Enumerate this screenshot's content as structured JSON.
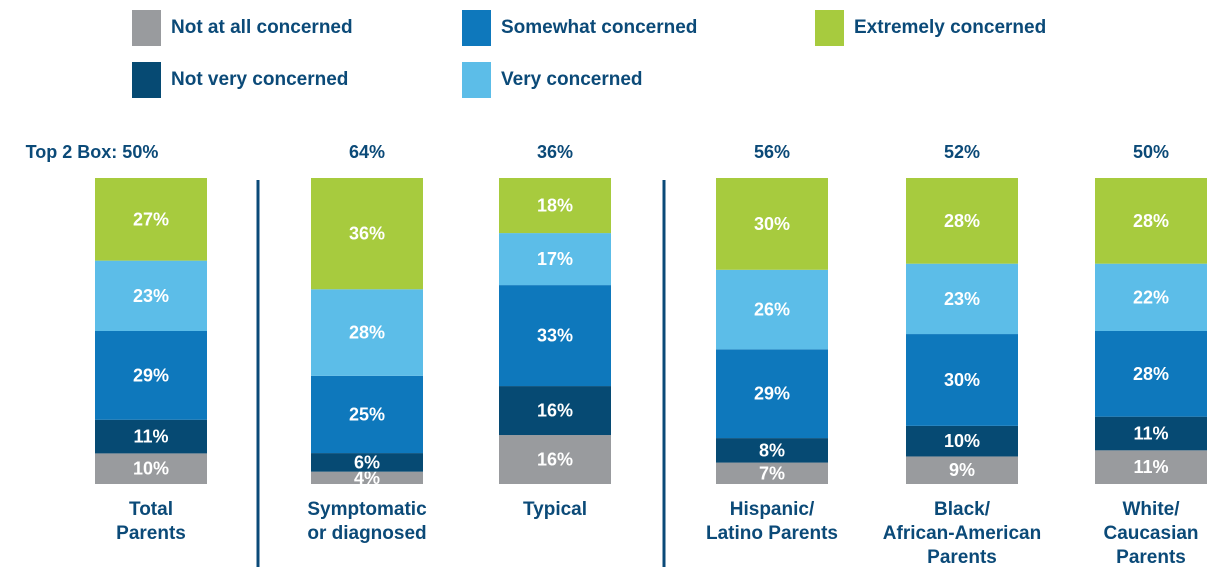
{
  "legend": [
    {
      "key": "not_at_all",
      "label": "Not at all concerned",
      "color": "#999b9e"
    },
    {
      "key": "somewhat",
      "label": "Somewhat concerned",
      "color": "#0e78bc"
    },
    {
      "key": "extremely",
      "label": "Extremely concerned",
      "color": "#a7cb3e"
    },
    {
      "key": "not_very",
      "label": "Not very concerned",
      "color": "#064a73"
    },
    {
      "key": "very",
      "label": "Very concerned",
      "color": "#5cbde8"
    }
  ],
  "chart_data": {
    "type": "bar",
    "stacked": true,
    "series": [
      {
        "name": "Not at all concerned",
        "key": "not_at_all",
        "values": [
          10,
          4,
          16,
          7,
          9,
          11
        ]
      },
      {
        "name": "Not very concerned",
        "key": "not_very",
        "values": [
          11,
          6,
          16,
          8,
          10,
          11
        ]
      },
      {
        "name": "Somewhat concerned",
        "key": "somewhat",
        "values": [
          29,
          25,
          33,
          29,
          30,
          28
        ]
      },
      {
        "name": "Very concerned",
        "key": "very",
        "values": [
          23,
          28,
          17,
          26,
          23,
          22
        ]
      },
      {
        "name": "Extremely concerned",
        "key": "extremely",
        "values": [
          27,
          36,
          18,
          30,
          28,
          28
        ]
      }
    ],
    "categories": [
      {
        "label_lines": [
          "Total",
          "Parents"
        ],
        "top_label": "Top 2 Box: 50%"
      },
      {
        "label_lines": [
          "Symptomatic",
          "or diagnosed"
        ],
        "top_label": "64%"
      },
      {
        "label_lines": [
          "Typical"
        ],
        "top_label": "36%"
      },
      {
        "label_lines": [
          "Hispanic/",
          "Latino Parents"
        ],
        "top_label": "56%"
      },
      {
        "label_lines": [
          "Black/",
          "African-American",
          "Parents"
        ],
        "top_label": "52%"
      },
      {
        "label_lines": [
          "White/",
          "Caucasian",
          "Parents"
        ],
        "top_label": "50%"
      }
    ],
    "value_suffix": "%",
    "ylim": [
      0,
      100
    ],
    "grid": false,
    "legend_position": "top",
    "dividers_after_category_index": [
      0,
      2
    ],
    "colors": {
      "label_text": "#0b4a78",
      "segment_text": "#ffffff",
      "divider": "#0b4a78"
    }
  }
}
